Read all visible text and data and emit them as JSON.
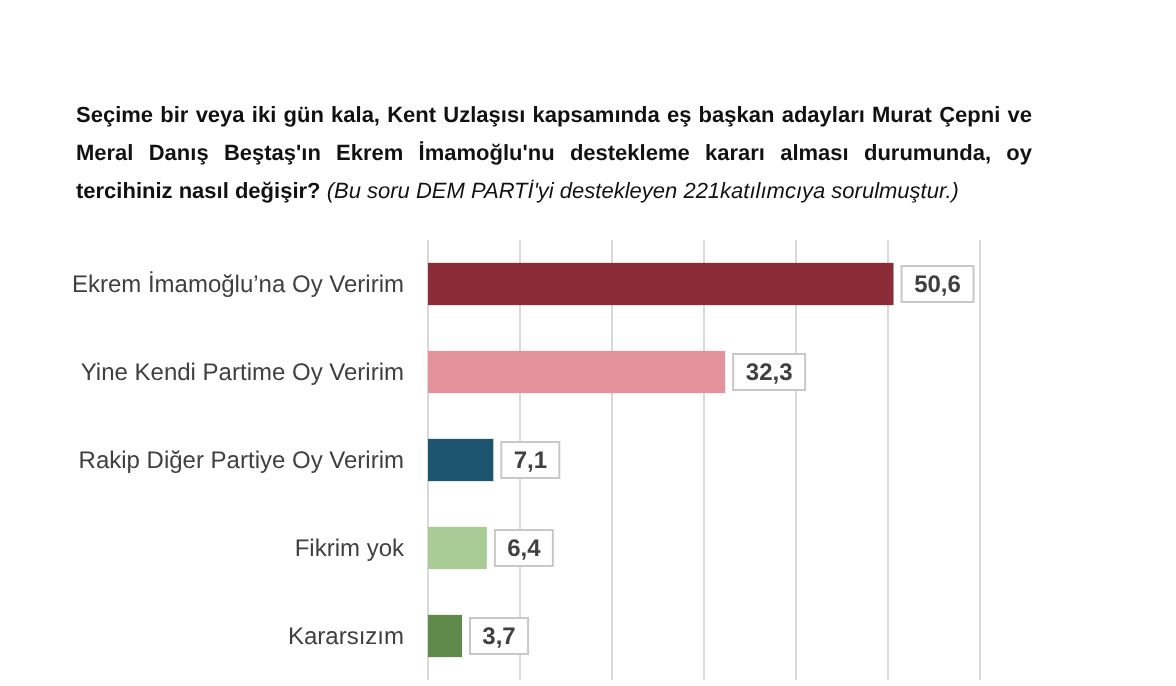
{
  "chart_data": {
    "type": "bar",
    "orientation": "horizontal",
    "title": "Seçime bir veya iki gün kala, Kent Uzlaşısı kapsamında eş başkan adayları Murat Çepni ve Meral Danış Beştaş'ın Ekrem İmamoğlu'nu destekleme kararı alması durumunda, oy tercihiniz nasıl değişir?",
    "subtitle": "(Bu soru DEM PARTİ'yi destekleyen 221katılımcıya sorulmuştur.)",
    "categories": [
      "Ekrem İmamoğlu’na Oy Veririm",
      "Yine Kendi Partime Oy Veririm",
      "Rakip Diğer Partiye Oy Veririm",
      "Fikrim yok",
      "Kararsızım"
    ],
    "values": [
      50.6,
      32.3,
      7.1,
      6.4,
      3.7
    ],
    "colors": [
      "#8b2b38",
      "#e4939d",
      "#1d5470",
      "#a9cc96",
      "#5e8a4c"
    ],
    "value_labels": [
      "50,6",
      "32,3",
      "7,1",
      "6,4",
      "3,7"
    ],
    "xlim": [
      0,
      60
    ],
    "xticks": [
      {
        "value": 0,
        "label": null
      },
      {
        "value": 10,
        "label": null
      },
      {
        "value": 20,
        "label": null
      },
      {
        "value": 30,
        "label": null
      },
      {
        "value": 40,
        "label": null
      },
      {
        "value": 50,
        "label": null
      },
      {
        "value": 60,
        "label": null
      }
    ],
    "grid": "x",
    "tick_labels": "y"
  }
}
